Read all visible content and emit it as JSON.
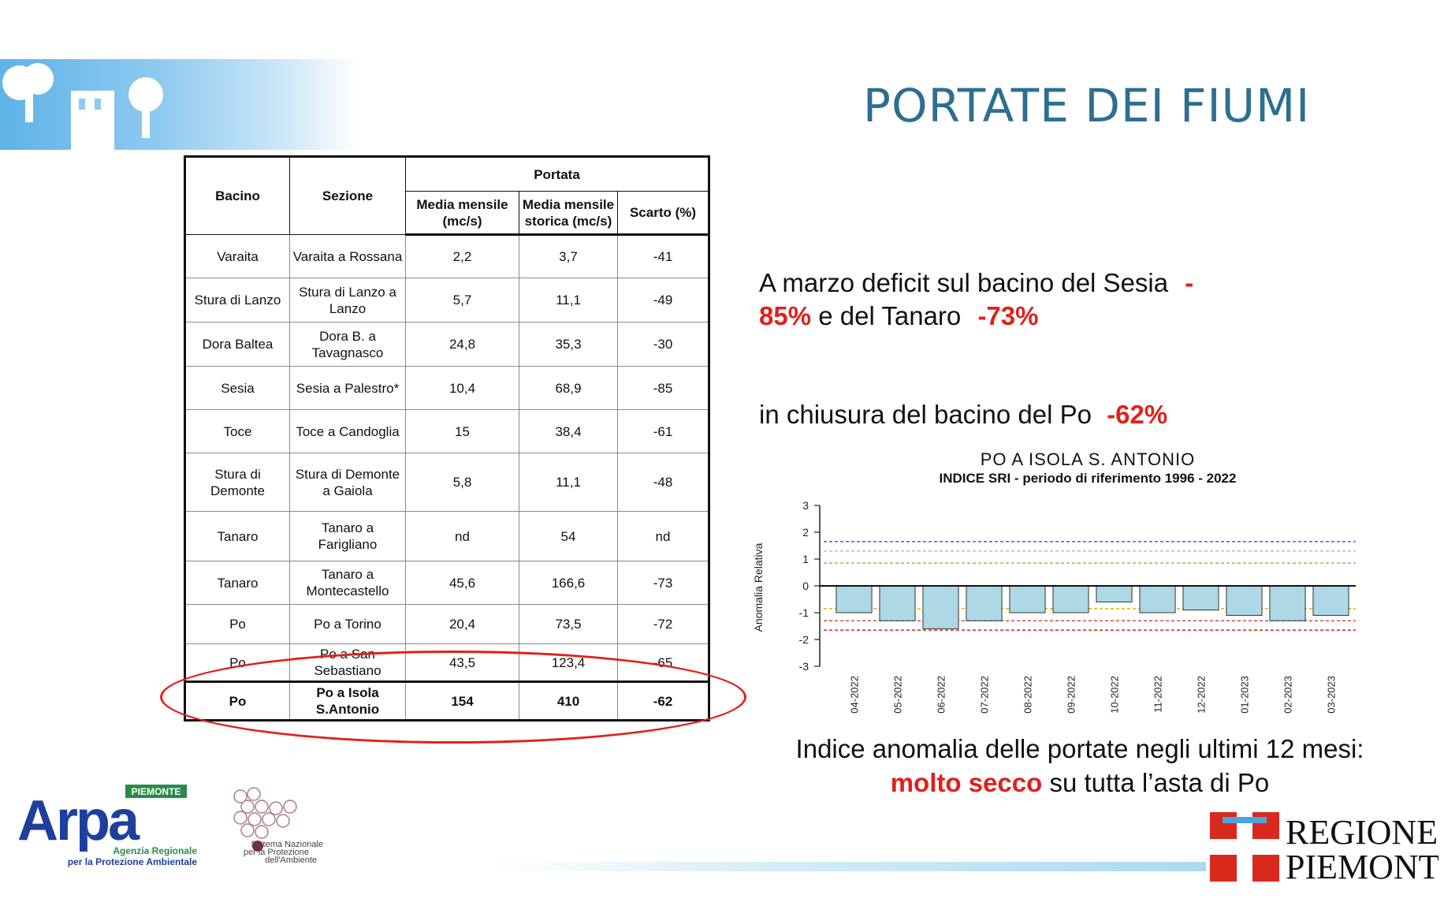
{
  "title": "PORTATE DEI FIUMI",
  "table": {
    "headers": {
      "bacino": "Bacino",
      "sezione": "Sezione",
      "portata": "Portata",
      "media_mensile": "Media mensile (mc/s)",
      "media_storica": "Media mensile storica (mc/s)",
      "scarto": "Scarto (%)"
    },
    "rows": [
      {
        "bacino": "Varaita",
        "sezione": "Varaita a Rossana",
        "media": "2,2",
        "storica": "3,7",
        "scarto": "-41"
      },
      {
        "bacino": "Stura di Lanzo",
        "sezione": "Stura di Lanzo a Lanzo",
        "media": "5,7",
        "storica": "11,1",
        "scarto": "-49"
      },
      {
        "bacino": "Dora Baltea",
        "sezione": "Dora B. a Tavagnasco",
        "media": "24,8",
        "storica": "35,3",
        "scarto": "-30"
      },
      {
        "bacino": "Sesia",
        "sezione": "Sesia a Palestro*",
        "media": "10,4",
        "storica": "68,9",
        "scarto": "-85"
      },
      {
        "bacino": "Toce",
        "sezione": "Toce a Candoglia",
        "media": "15",
        "storica": "38,4",
        "scarto": "-61"
      },
      {
        "bacino": "Stura di Demonte",
        "sezione": "Stura di Demonte a Gaiola",
        "media": "5,8",
        "storica": "11,1",
        "scarto": "-48"
      },
      {
        "bacino": "Tanaro",
        "sezione": "Tanaro a Farigliano",
        "media": "nd",
        "storica": "54",
        "scarto": "nd"
      },
      {
        "bacino": "Tanaro",
        "sezione": "Tanaro a Montecastello",
        "media": "45,6",
        "storica": "166,6",
        "scarto": "-73"
      },
      {
        "bacino": "Po",
        "sezione": "Po a Torino",
        "media": "20,4",
        "storica": "73,5",
        "scarto": "-72"
      },
      {
        "bacino": "Po",
        "sezione": "Po a San Sebastiano",
        "media": "43,5",
        "storica": "123,4",
        "scarto": "-65"
      },
      {
        "bacino": "Po",
        "sezione": "Po a Isola S.Antonio",
        "media": "154",
        "storica": "410",
        "scarto": "-62"
      }
    ]
  },
  "text": {
    "p1_a": "A marzo deficit sul bacino del Sesia ",
    "p1_b": "-",
    "p1_c": "85%",
    "p1_d": " e del Tanaro ",
    "p1_e": "-73%",
    "p2_a": "in chiusura del bacino del Po ",
    "p2_b": "-62%",
    "caption_a": "Indice anomalia delle portate negli ultimi 12 mesi: ",
    "caption_b": "molto secco",
    "caption_c": " su tutta l’asta di Po"
  },
  "chart_data": {
    "type": "bar",
    "title": "PO A ISOLA S. ANTONIO",
    "subtitle": "INDICE SRI - periodo di riferimento 1996 - 2022",
    "ylabel": "Anomalia Relativa",
    "xlabel": "",
    "ylim": [
      -3,
      3
    ],
    "yticks": [
      "3",
      "2",
      "1",
      "0",
      "-1",
      "-2",
      "-3"
    ],
    "categories": [
      "04-2022",
      "05-2022",
      "06-2022",
      "07-2022",
      "08-2022",
      "09-2022",
      "10-2022",
      "11-2022",
      "12-2022",
      "01-2023",
      "02-2023",
      "03-2023"
    ],
    "values": [
      -1.0,
      -1.3,
      -1.6,
      -1.3,
      -1.0,
      -1.0,
      -0.6,
      -1.0,
      -0.9,
      -1.1,
      -1.3,
      -1.1
    ],
    "reference_lines": [
      {
        "value": 1.65,
        "color": "#5a4fd6"
      },
      {
        "value": 1.3,
        "color": "#9ad28a"
      },
      {
        "value": 0.85,
        "color": "#8bc34a"
      },
      {
        "value": -0.85,
        "color": "#e0b400"
      },
      {
        "value": -1.3,
        "color": "#d24a4a"
      },
      {
        "value": -1.65,
        "color": "#e0201b"
      }
    ],
    "bar_color": "#add8e6"
  },
  "logos": {
    "arpa_badge": "PIEMONTE",
    "arpa": "Arpa",
    "arpa_sub1": "Agenzia Regionale",
    "arpa_sub2": "per la Protezione Ambientale",
    "snpa_1": "Sistema Nazionale",
    "snpa_2": "per la Protezione",
    "snpa_3": "dell'Ambiente",
    "regione_1": "REGIONE",
    "regione_2": "PIEMONTE"
  },
  "colors": {
    "title": "#2d6f8e",
    "accent_red": "#e0201b"
  }
}
